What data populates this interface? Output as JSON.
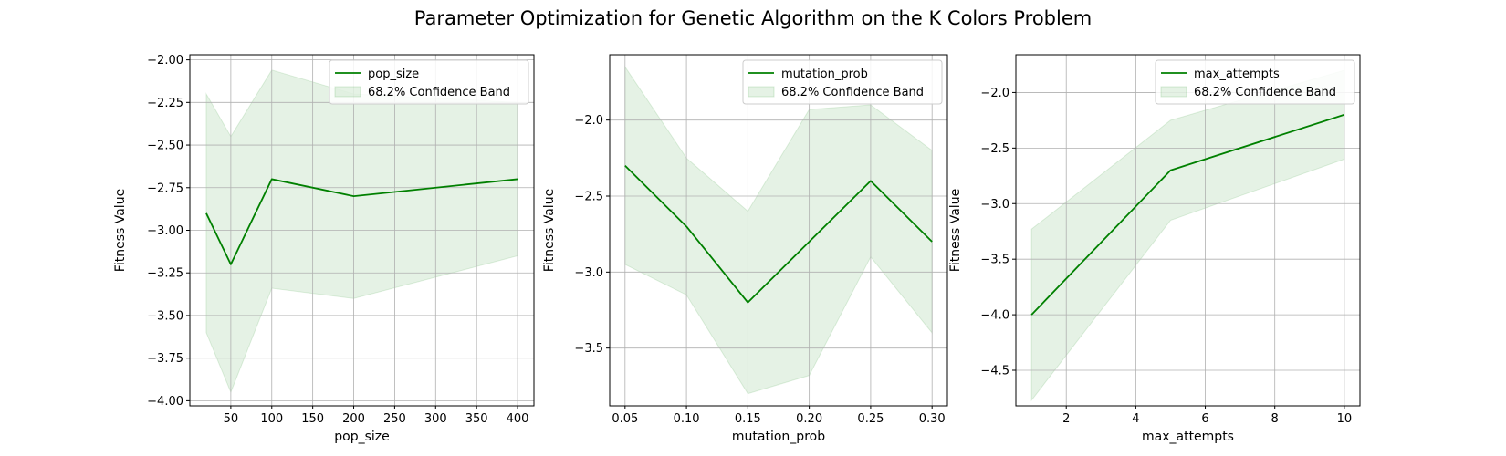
{
  "figure": {
    "title": "Parameter Optimization for Genetic Algorithm on the K Colors Problem"
  },
  "colors": {
    "line": "#008000",
    "band": "#008000",
    "grid": "#b0b0b0",
    "axis": "#000000"
  },
  "chart_data": [
    {
      "type": "line",
      "xlabel": "pop_size",
      "ylabel": "Fitness Value",
      "x": [
        20,
        50,
        100,
        200,
        400
      ],
      "series": [
        {
          "name": "pop_size",
          "values": [
            -2.9,
            -3.2,
            -2.7,
            -2.8,
            -2.7
          ],
          "lower": [
            -3.6,
            -3.95,
            -3.34,
            -3.4,
            -3.15
          ],
          "upper": [
            -2.2,
            -2.45,
            -2.06,
            -2.2,
            -2.25
          ]
        }
      ],
      "band_label": "68.2% Confidence Band",
      "xlim": [
        0,
        420
      ],
      "ylim": [
        -4.03,
        -1.97
      ],
      "xticks": [
        50,
        100,
        150,
        200,
        250,
        300,
        350,
        400
      ],
      "xtick_labels": [
        "50",
        "100",
        "150",
        "200",
        "250",
        "300",
        "350",
        "400"
      ],
      "yticks": [
        -4.0,
        -3.75,
        -3.5,
        -3.25,
        -3.0,
        -2.75,
        -2.5,
        -2.25,
        -2.0
      ],
      "ytick_labels": [
        "−4.00",
        "−3.75",
        "−3.50",
        "−3.25",
        "−3.00",
        "−2.75",
        "−2.50",
        "−2.25",
        "−2.00"
      ],
      "grid": true,
      "legend": "upper right"
    },
    {
      "type": "line",
      "xlabel": "mutation_prob",
      "ylabel": "Fitness Value",
      "x": [
        0.05,
        0.1,
        0.15,
        0.2,
        0.25,
        0.3
      ],
      "series": [
        {
          "name": "mutation_prob",
          "values": [
            -2.3,
            -2.7,
            -3.2,
            -2.8,
            -2.4,
            -2.8
          ],
          "lower": [
            -2.95,
            -3.15,
            -3.8,
            -3.68,
            -2.9,
            -3.4
          ],
          "upper": [
            -1.65,
            -2.25,
            -2.6,
            -1.93,
            -1.9,
            -2.2
          ]
        }
      ],
      "band_label": "68.2% Confidence Band",
      "xlim": [
        0.0375,
        0.3125
      ],
      "ylim": [
        -3.88,
        -1.57
      ],
      "xticks": [
        0.05,
        0.1,
        0.15,
        0.2,
        0.25,
        0.3
      ],
      "xtick_labels": [
        "0.05",
        "0.10",
        "0.15",
        "0.20",
        "0.25",
        "0.30"
      ],
      "yticks": [
        -3.5,
        -3.0,
        -2.5,
        -2.0
      ],
      "ytick_labels": [
        "−3.5",
        "−3.0",
        "−2.5",
        "−2.0"
      ],
      "grid": true,
      "legend": "upper right"
    },
    {
      "type": "line",
      "xlabel": "max_attempts",
      "ylabel": "Fitness Value",
      "x": [
        1,
        5,
        10
      ],
      "series": [
        {
          "name": "max_attempts",
          "values": [
            -4.0,
            -2.7,
            -2.2
          ],
          "lower": [
            -4.77,
            -3.15,
            -2.6
          ],
          "upper": [
            -3.23,
            -2.25,
            -1.8
          ]
        }
      ],
      "band_label": "68.2% Confidence Band",
      "xlim": [
        0.55,
        10.45
      ],
      "ylim": [
        -4.82,
        -1.66
      ],
      "xticks": [
        2,
        4,
        6,
        8,
        10
      ],
      "xtick_labels": [
        "2",
        "4",
        "6",
        "8",
        "10"
      ],
      "yticks": [
        -4.5,
        -4.0,
        -3.5,
        -3.0,
        -2.5,
        -2.0
      ],
      "ytick_labels": [
        "−4.5",
        "−4.0",
        "−3.5",
        "−3.0",
        "−2.5",
        "−2.0"
      ],
      "grid": true,
      "legend": "upper right"
    }
  ]
}
